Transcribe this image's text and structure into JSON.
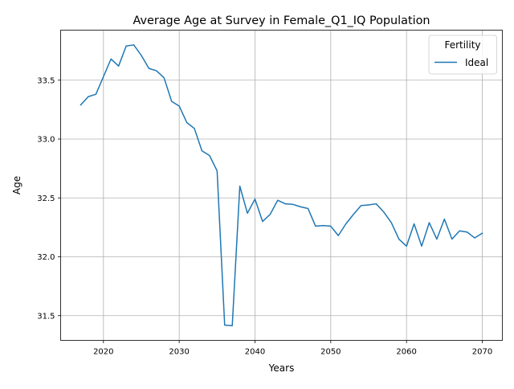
{
  "chart_data": {
    "type": "line",
    "title": "Average Age at Survey in Female_Q1_IQ Population",
    "xlabel": "Years",
    "ylabel": "Age",
    "xlim": [
      2014.35,
      2072.65
    ],
    "ylim": [
      31.29,
      33.925
    ],
    "xticks": [
      2020,
      2030,
      2040,
      2050,
      2060,
      2070
    ],
    "xtick_labels": [
      "2020",
      "2030",
      "2040",
      "2050",
      "2060",
      "2070"
    ],
    "yticks": [
      31.5,
      32.0,
      32.5,
      33.0,
      33.5
    ],
    "ytick_labels": [
      "31.5",
      "32.0",
      "32.5",
      "33.0",
      "33.5"
    ],
    "grid": true,
    "legend": {
      "title": "Fertility",
      "placement": "top-right"
    },
    "series": [
      {
        "name": "Ideal",
        "color": "#1f77b4",
        "x": [
          2017,
          2018,
          2019,
          2020,
          2021,
          2022,
          2023,
          2024,
          2025,
          2026,
          2027,
          2028,
          2029,
          2030,
          2031,
          2032,
          2033,
          2034,
          2035,
          2036,
          2037,
          2038,
          2039,
          2040,
          2041,
          2042,
          2043,
          2044,
          2045,
          2046,
          2047,
          2048,
          2049,
          2050,
          2051,
          2052,
          2053,
          2054,
          2055,
          2056,
          2057,
          2058,
          2059,
          2060,
          2061,
          2062,
          2063,
          2064,
          2065,
          2066,
          2067,
          2068,
          2069,
          2070
        ],
        "y": [
          33.29,
          33.36,
          33.38,
          33.53,
          33.68,
          33.62,
          33.79,
          33.8,
          33.71,
          33.6,
          33.58,
          33.52,
          33.32,
          33.28,
          33.14,
          33.09,
          32.9,
          32.86,
          32.73,
          31.42,
          31.415,
          32.6,
          32.37,
          32.49,
          32.3,
          32.36,
          32.48,
          32.45,
          32.445,
          32.425,
          32.41,
          32.26,
          32.265,
          32.26,
          32.18,
          32.28,
          32.36,
          32.435,
          32.44,
          32.45,
          32.38,
          32.29,
          32.15,
          32.09,
          32.28,
          32.09,
          32.29,
          32.15,
          32.32,
          32.15,
          32.22,
          32.21,
          32.16,
          32.2
        ]
      }
    ]
  }
}
